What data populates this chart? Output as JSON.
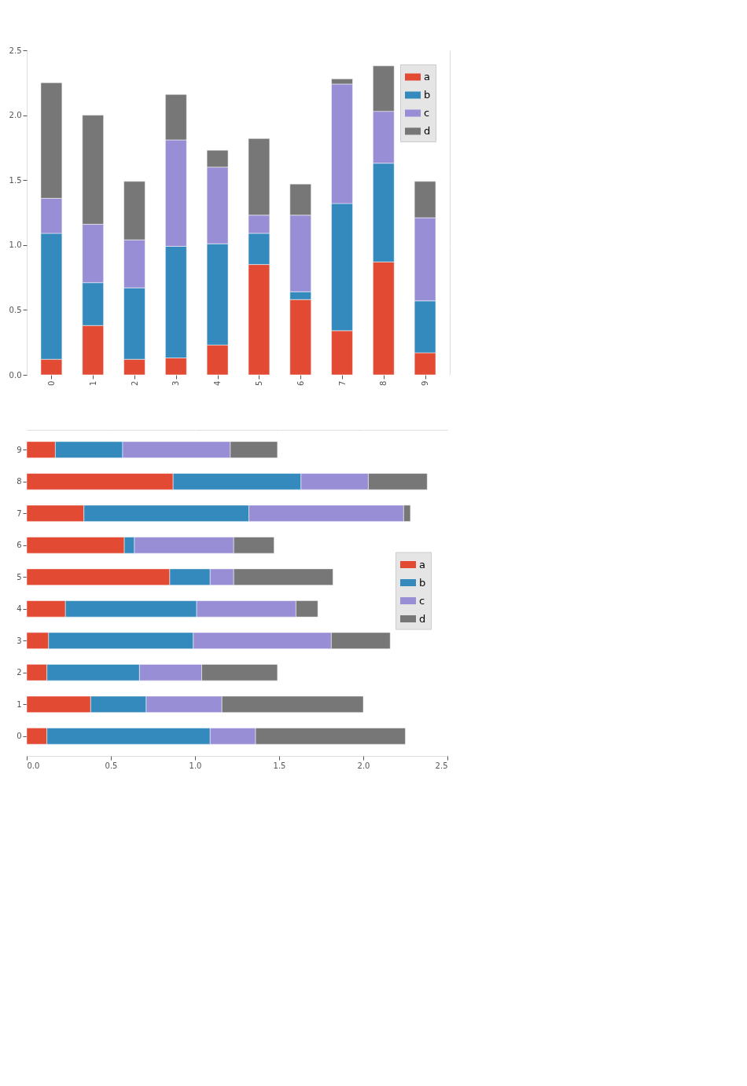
{
  "chart_data": [
    {
      "type": "bar",
      "stacked": true,
      "categories": [
        "0",
        "1",
        "2",
        "3",
        "4",
        "5",
        "6",
        "7",
        "8",
        "9"
      ],
      "series": [
        {
          "name": "a",
          "color": "#e24a33",
          "values": [
            0.12,
            0.38,
            0.12,
            0.13,
            0.23,
            0.85,
            0.58,
            0.34,
            0.87,
            0.17
          ]
        },
        {
          "name": "b",
          "color": "#348abd",
          "values": [
            0.97,
            0.33,
            0.55,
            0.86,
            0.78,
            0.24,
            0.06,
            0.98,
            0.76,
            0.4
          ]
        },
        {
          "name": "c",
          "color": "#988ed5",
          "values": [
            0.27,
            0.45,
            0.37,
            0.82,
            0.59,
            0.14,
            0.59,
            0.92,
            0.4,
            0.64
          ]
        },
        {
          "name": "d",
          "color": "#777777",
          "values": [
            0.89,
            0.84,
            0.45,
            0.35,
            0.13,
            0.59,
            0.24,
            0.04,
            0.35,
            0.28
          ]
        }
      ],
      "ylim": [
        0,
        2.5
      ],
      "yticks": [
        {
          "value": 0,
          "label": "0.0"
        },
        0.5,
        {
          "value": 1,
          "label": "1.0"
        },
        1.5,
        {
          "value": 2,
          "label": "2.0"
        },
        2.5
      ],
      "grid": true,
      "legend": "top right"
    },
    {
      "type": "bar",
      "stacked": true,
      "orientation": "horizontal",
      "categories": [
        "9",
        "8",
        "7",
        "6",
        "5",
        "4",
        "3",
        "2",
        "1",
        "0"
      ],
      "series": [
        {
          "name": "a",
          "color": "#e24a33",
          "values": [
            0.17,
            0.87,
            0.34,
            0.58,
            0.85,
            0.23,
            0.13,
            0.12,
            0.38,
            0.12
          ]
        },
        {
          "name": "b",
          "color": "#348abd",
          "values": [
            0.4,
            0.76,
            0.98,
            0.06,
            0.24,
            0.78,
            0.86,
            0.55,
            0.33,
            0.97
          ]
        },
        {
          "name": "c",
          "color": "#988ed5",
          "values": [
            0.64,
            0.4,
            0.92,
            0.59,
            0.14,
            0.59,
            0.82,
            0.37,
            0.45,
            0.27
          ]
        },
        {
          "name": "d",
          "color": "#777777",
          "values": [
            0.28,
            0.35,
            0.04,
            0.24,
            0.59,
            0.13,
            0.35,
            0.45,
            0.84,
            0.89
          ]
        }
      ],
      "xlim": [
        0,
        2.5
      ],
      "xticks": [
        {
          "value": 0,
          "label": "0.0"
        },
        0.5,
        {
          "value": 1,
          "label": "1.0"
        },
        1.5,
        {
          "value": 2,
          "label": "2.0"
        },
        2.5
      ],
      "grid": true,
      "legend": "right"
    }
  ]
}
